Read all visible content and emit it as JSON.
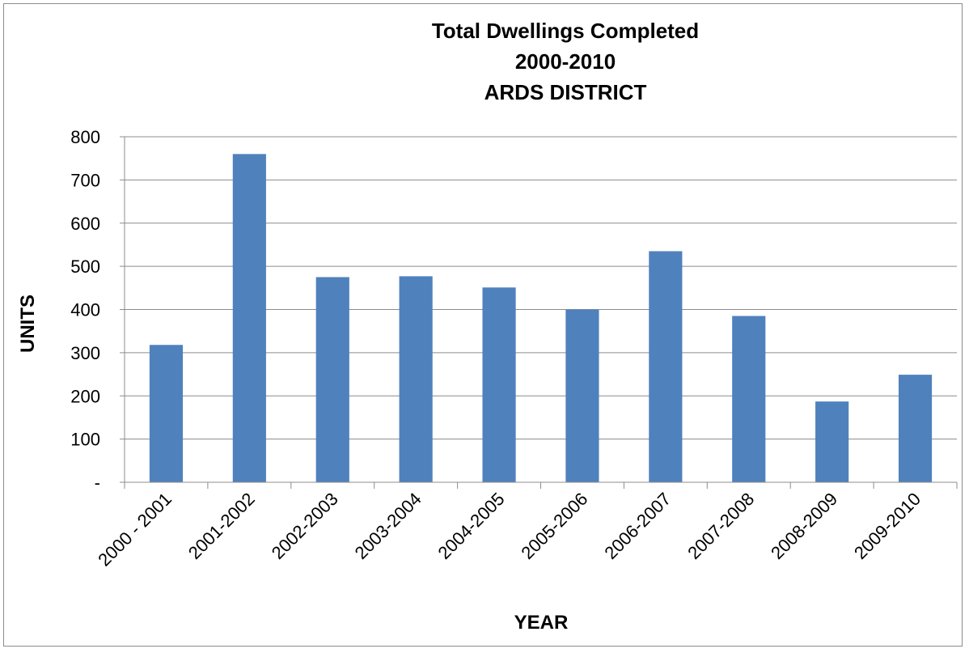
{
  "chart_data": {
    "type": "bar",
    "title": [
      "Total Dwellings Completed",
      "2000-2010",
      "ARDS DISTRICT"
    ],
    "xlabel": "YEAR",
    "ylabel": "UNITS",
    "categories": [
      "2000 - 2001",
      "2001-2002",
      "2002-2003",
      "2003-2004",
      "2004-2005",
      "2005-2006",
      "2006-2007",
      "2007-2008",
      "2008-2009",
      "2009-2010"
    ],
    "values": [
      318,
      760,
      475,
      477,
      451,
      400,
      535,
      385,
      187,
      249
    ],
    "ylim": [
      0,
      800
    ],
    "yticks": [
      0,
      100,
      200,
      300,
      400,
      500,
      600,
      700,
      800
    ],
    "ytick_labels": [
      "-",
      "100",
      "200",
      "300",
      "400",
      "500",
      "600",
      "700",
      "800"
    ],
    "grid": true,
    "legend": "none",
    "bar_color": "#4F81BD"
  }
}
